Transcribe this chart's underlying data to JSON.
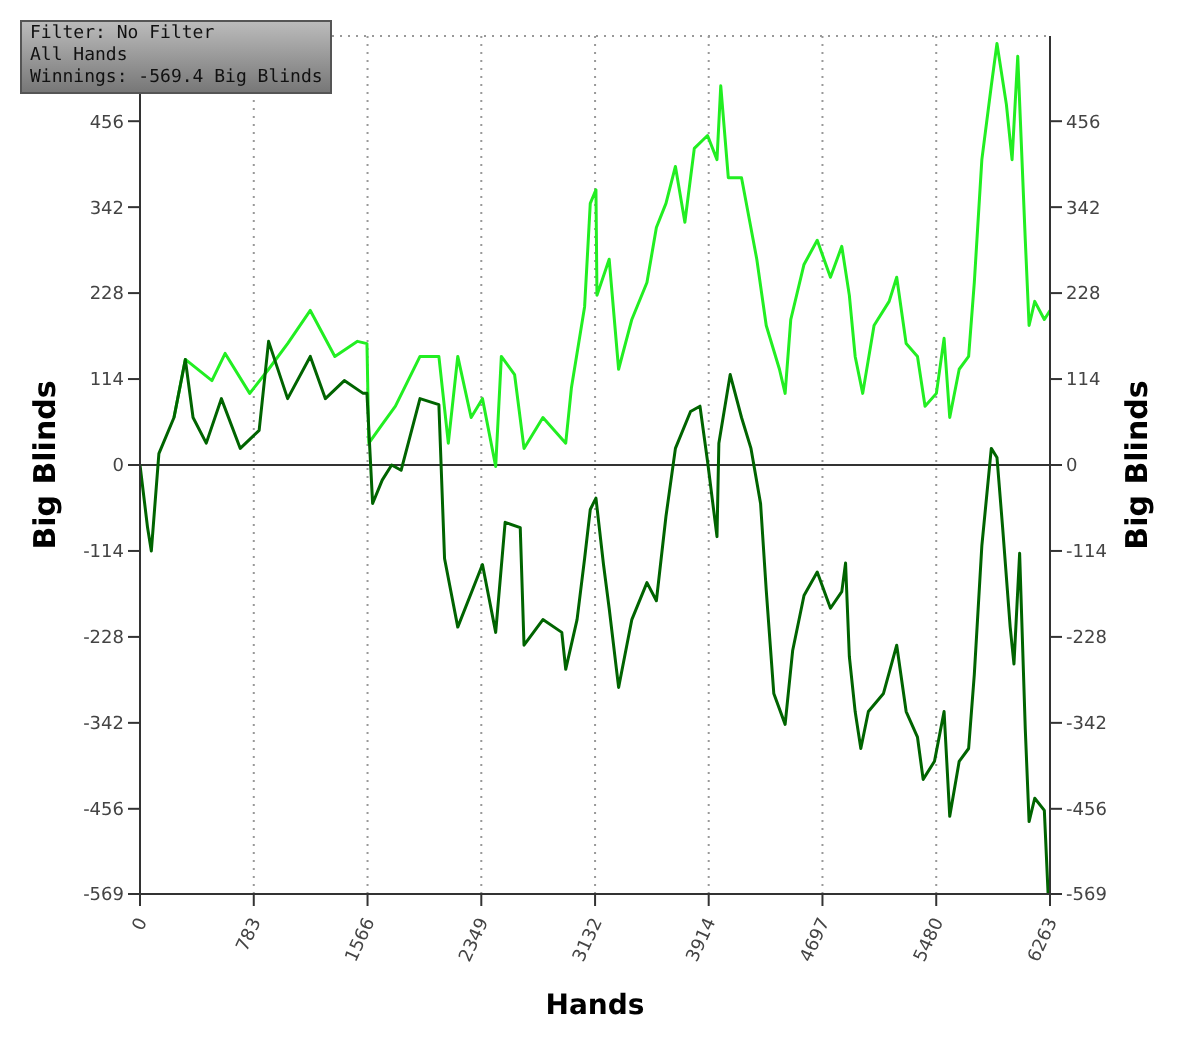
{
  "chart_data": {
    "type": "line",
    "xlabel": "Hands",
    "ylabel": "Big Blinds",
    "y2label": "Big Blinds",
    "annotations": [
      "Filter: No Filter",
      "All Hands",
      "Winnings: -569.4 Big Blinds"
    ],
    "xlim": [
      0,
      6263
    ],
    "xticks": [
      0,
      783,
      1566,
      2349,
      3132,
      3914,
      4697,
      5480,
      6263
    ],
    "ylim": [
      -569,
      569
    ],
    "yticks": [
      -569,
      -456,
      -342,
      -228,
      -114,
      0,
      114,
      228,
      342,
      456
    ],
    "y2lim": [
      -569,
      569
    ],
    "y2ticks": [
      -569,
      -456,
      -342,
      -228,
      -114,
      0,
      114,
      228,
      342,
      456
    ],
    "grid": true,
    "legend": false,
    "marker": "none",
    "line_style": "solid",
    "ref_lines": [
      {
        "axis": "y",
        "value": 0,
        "color": "#333333",
        "line_style": "solid"
      }
    ],
    "series": [
      {
        "color": "#22ee22",
        "x": [
          234,
          312,
          495,
          586,
          755,
          885,
          1016,
          1172,
          1341,
          1497,
          1562,
          1575,
          1667,
          1758,
          1927,
          2057,
          2122,
          2187,
          2279,
          2357,
          2448,
          2487,
          2578,
          2643,
          2773,
          2930,
          2969,
          3060,
          3099,
          3138,
          3145,
          3229,
          3294,
          3385,
          3489,
          3554,
          3620,
          3685,
          3750,
          3815,
          3906,
          3971,
          3997,
          4049,
          4140,
          4245,
          4310,
          4401,
          4440,
          4479,
          4570,
          4661,
          4752,
          4830,
          4882,
          4922,
          4974,
          5052,
          5156,
          5208,
          5273,
          5351,
          5403,
          5481,
          5534,
          5573,
          5638,
          5703,
          5742,
          5794,
          5859,
          5898,
          5963,
          6002,
          6041,
          6093,
          6119,
          6158,
          6224,
          6263
        ],
        "values": [
          63,
          140,
          112,
          148,
          95,
          127,
          161,
          205,
          144,
          164,
          161,
          29,
          54,
          78,
          144,
          144,
          29,
          144,
          63,
          88,
          -2,
          144,
          120,
          22,
          63,
          29,
          102,
          210,
          347,
          365,
          225,
          273,
          127,
          193,
          242,
          315,
          347,
          396,
          322,
          420,
          437,
          405,
          503,
          381,
          381,
          273,
          185,
          127,
          95,
          193,
          266,
          298,
          249,
          290,
          225,
          144,
          95,
          185,
          217,
          249,
          161,
          144,
          78,
          95,
          168,
          63,
          127,
          144,
          242,
          405,
          503,
          559,
          478,
          405,
          542,
          298,
          185,
          217,
          193,
          205
        ]
      },
      {
        "color": "#006400",
        "x": [
          0,
          52,
          78,
          130,
          234,
          312,
          365,
          456,
          560,
          690,
          820,
          885,
          1016,
          1172,
          1276,
          1406,
          1536,
          1562,
          1601,
          1667,
          1732,
          1797,
          1927,
          2057,
          2096,
          2187,
          2357,
          2448,
          2513,
          2617,
          2643,
          2773,
          2903,
          2930,
          3008,
          3060,
          3099,
          3138,
          3190,
          3229,
          3294,
          3385,
          3489,
          3554,
          3620,
          3685,
          3789,
          3854,
          3906,
          3971,
          3984,
          4062,
          4140,
          4205,
          4271,
          4310,
          4362,
          4440,
          4492,
          4570,
          4661,
          4752,
          4830,
          4856,
          4882,
          4922,
          4961,
          5013,
          5117,
          5208,
          5273,
          5351,
          5390,
          5468,
          5534,
          5573,
          5638,
          5703,
          5742,
          5794,
          5859,
          5898,
          5937,
          5989,
          6015,
          6054,
          6093,
          6119,
          6158,
          6224,
          6250,
          6263
        ],
        "values": [
          0,
          -83,
          -114,
          15,
          63,
          140,
          63,
          29,
          88,
          22,
          46,
          164,
          88,
          144,
          88,
          112,
          95,
          95,
          -51,
          -20,
          0,
          -7,
          88,
          80,
          -124,
          -215,
          -132,
          -222,
          -76,
          -83,
          -239,
          -205,
          -222,
          -271,
          -205,
          -124,
          -59,
          -44,
          -132,
          -190,
          -295,
          -205,
          -156,
          -180,
          -68,
          22,
          71,
          78,
          5,
          -95,
          29,
          120,
          63,
          22,
          -51,
          -166,
          -303,
          -344,
          -246,
          -173,
          -142,
          -190,
          -168,
          -130,
          -254,
          -327,
          -376,
          -327,
          -303,
          -239,
          -327,
          -361,
          -417,
          -393,
          -327,
          -466,
          -393,
          -376,
          -278,
          -107,
          22,
          10,
          -83,
          -215,
          -264,
          -117,
          -351,
          -473,
          -442,
          -458,
          -569,
          -569
        ]
      }
    ]
  }
}
